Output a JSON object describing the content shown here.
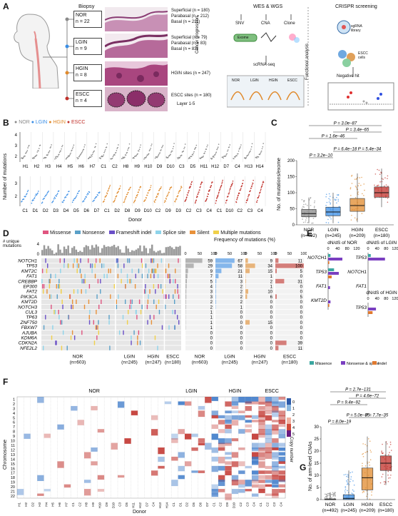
{
  "panels": {
    "A": {
      "label": "A",
      "biopsy_title": "Biopsy",
      "stages": [
        {
          "name": "NOR",
          "n": "n = 22",
          "color": "#8a8a8a"
        },
        {
          "name": "LGIN",
          "n": "n = 9",
          "color": "#3a8ee6"
        },
        {
          "name": "HGIN",
          "n": "n = 8",
          "color": "#e08a2c"
        },
        {
          "name": "ESCC",
          "n": "n = 4",
          "color": "#c0302a"
        }
      ],
      "site_labels": [
        [
          "Superficial (n = 180)",
          "Parabasal (n = 212)",
          "Basal (n = 211)"
        ],
        [
          "Superficial (n = 79)",
          "Parabasal (n = 83)",
          "Basal (n = 83)"
        ],
        [
          "HGIN sites (n = 247)"
        ],
        [
          "ESCC sites (n = 180)"
        ]
      ],
      "layer_label": "Layer 1-5",
      "wes_title": "WES & WGS",
      "wes_items": [
        "SNV",
        "CNA",
        "Clone"
      ],
      "exome_label": "Exome",
      "cancer_progression": "Cancer progression",
      "scrna_title": "scRNA-seq",
      "scrna_stages": [
        "NOR",
        "LGIN",
        "HGIN",
        "ESCC"
      ],
      "functional_analysis": "Functional analysis",
      "crispr_title": "CRISPR screening",
      "sgrna_label": "sgRNA\nlibrary",
      "escc_cells": "ESCC\ncells",
      "negative_hit": "Negative hit"
    },
    "B": {
      "label": "B",
      "legend": [
        {
          "name": "NOR",
          "color": "#8a8a8a"
        },
        {
          "name": "LGIN",
          "color": "#3a8ee6"
        },
        {
          "name": "HGIN",
          "color": "#e08a2c"
        },
        {
          "name": "ESCC",
          "color": "#c0302a"
        }
      ],
      "ylabel": "Number of mutations",
      "xlabel": "Donor",
      "top_yticks": [
        "4",
        "3",
        "2"
      ],
      "bottom_yticks": [
        "3",
        "2"
      ],
      "top_donors": [
        "H1",
        "H2",
        "H3",
        "H4",
        "H5",
        "H6",
        "H7",
        "C1",
        "C2",
        "H8",
        "H9",
        "H10",
        "D9",
        "D10",
        "C3",
        "D5",
        "H11",
        "H12",
        "D7",
        "C4",
        "H13",
        "H14"
      ],
      "bottom_donors": [
        "C1",
        "D1",
        "D2",
        "D3",
        "D4",
        "D5",
        "D6",
        "D7",
        "C1",
        "D2",
        "D8",
        "D9",
        "D10",
        "C2",
        "D9",
        "D3",
        "C2",
        "C3",
        "C4",
        "C1",
        "D10",
        "C2",
        "C3",
        "C4"
      ]
    },
    "C": {
      "label": "C",
      "ylabel": "No. of mutations/exome",
      "yticks": [
        "200",
        "150",
        "100",
        "50",
        "0"
      ],
      "pvalues": [
        "P = 3.0e−87",
        "P = 3.4e−65",
        "P = 1.6e−46",
        "P = 5.4e−34",
        "P = 6.4e−18",
        "P = 3.2e−10"
      ],
      "groups": [
        "NOR\n(n=492)",
        "LGIN\n(n=245)",
        "HGIN\n(n=209)",
        "ESCC\n(n=180)"
      ]
    },
    "D": {
      "label": "D",
      "legend": [
        {
          "name": "Missense",
          "color": "#e05580"
        },
        {
          "name": "Nonsense",
          "color": "#5aa0c8"
        },
        {
          "name": "Frameshift indel",
          "color": "#6a4fc7"
        },
        {
          "name": "Splice site",
          "color": "#8ed3ea"
        },
        {
          "name": "Silent",
          "color": "#e8913a"
        },
        {
          "name": "Multiple mutations",
          "color": "#f0d04a"
        }
      ],
      "unique_label": "# unique\nmutations",
      "freq_label": "Frequency of mutations (%)",
      "genes": [
        "NOTCH1",
        "TP53",
        "KMT2C",
        "FAT1",
        "CREBBP",
        "EP300",
        "FAT2",
        "PIK3CA",
        "KMT2D",
        "NOTCH3",
        "CUL3",
        "TP63",
        "ZNF750",
        "FBXW7",
        "AJUBA",
        "KDM6A",
        "CDKN2A",
        "NFE2L2"
      ],
      "freq_axis": [
        "0",
        "50",
        "100"
      ],
      "freq_columns": [
        {
          "name": "NOR",
          "values": [
            "59",
            "29",
            "9",
            "7",
            "5",
            "4",
            "3",
            "3",
            "2",
            "2",
            "1",
            "1",
            "1",
            "1",
            "0",
            "0",
            "0",
            "0"
          ]
        },
        {
          "name": "LGIN",
          "values": [
            "67",
            "58",
            "21",
            "11",
            "3",
            "2",
            "2",
            "2",
            "2",
            "1",
            "0",
            "0",
            "0",
            "0",
            "0",
            "0",
            "0",
            "0"
          ]
        },
        {
          "name": "HGIN",
          "values": [
            "9",
            "34",
            "15",
            "1",
            "2",
            "1",
            "10",
            "6",
            "0",
            "0",
            "0",
            "0",
            "15",
            "0",
            "0",
            "0",
            "0",
            "0"
          ]
        },
        {
          "name": "ESCC",
          "values": [
            "11",
            "100",
            "5",
            "0",
            "31",
            "0",
            "0",
            "5",
            "0",
            "0",
            "0",
            "0",
            "0",
            "0",
            "0",
            "0",
            "39",
            "11"
          ]
        }
      ],
      "bottom_groups": [
        "NOR\n(n=603)",
        "LGIN\n(n=245)",
        "HGIN\n(n=247)",
        "ESCC\n(n=180)",
        "NOR\n(n=603)",
        "LGIN\n(n=245)",
        "HGIN\n(n=247)",
        "ESCC\n(n=180)"
      ]
    },
    "E": {
      "label": "E",
      "title_nor": "dN/dS of NOR",
      "title_lgin": "dN/dS of LGIN",
      "title_hgin": "dN/dS of HGIN",
      "axis": [
        "0",
        "40",
        "80",
        "120"
      ],
      "genes_nor": [
        "NOTCH1",
        "TP53",
        "FAT1",
        "KMT2D"
      ],
      "genes_lgin": [
        "TP53",
        "NOTCH1",
        "FAT1"
      ],
      "genes_hgin": [
        "TP53"
      ],
      "legend": [
        {
          "name": "Missence",
          "color": "#3aa6a0"
        },
        {
          "name": "Nonsense & splice",
          "color": "#7a3fc0"
        },
        {
          "name": "Indel",
          "color": "#e07a30"
        }
      ]
    },
    "F": {
      "label": "F",
      "group_labels": [
        "NOR",
        "LGIN",
        "HGIN",
        "ESCC"
      ],
      "ylabel": "Chromosome",
      "chromosomes": [
        "1",
        "2",
        "3",
        "4",
        "5",
        "6",
        "7",
        "8",
        "9",
        "10",
        "11",
        "12",
        "13",
        "14",
        "15",
        "16",
        "17",
        "18",
        "19",
        "20",
        "21",
        "22"
      ],
      "xlabel": "Donor",
      "donors": [
        "H1",
        "H2",
        "D2",
        "H3",
        "H4",
        "H5",
        "H6",
        "H7",
        "C1",
        "C2",
        "H8",
        "H9",
        "H10",
        "D9",
        "D10",
        "C3",
        "D5",
        "H11",
        "H12",
        "D7",
        "C4",
        "H13",
        "H14",
        "C1",
        "D1",
        "D2",
        "D5",
        "D6",
        "D7",
        "C1",
        "C2",
        "D9",
        "D10",
        "C2",
        "C3",
        "C4",
        "C1",
        "C2",
        "C3",
        "C4"
      ],
      "copy_number_label": "Copy number",
      "copy_number_ticks": [
        "0",
        "1",
        "2",
        "3",
        "4",
        "5"
      ]
    },
    "G": {
      "label": "G",
      "ylabel": "No. of arm-level CNAs",
      "yticks": [
        "30",
        "25",
        "20",
        "15",
        "10",
        "5",
        "0"
      ],
      "pvalues": [
        "P = 2.7e−131",
        "P = 4.6e−72",
        "P = 9.4e−92",
        "P = 7.7e−35",
        "P = 5.0e−35",
        "P = 8.0e−19"
      ],
      "groups": [
        "NOR\n(n=492)",
        "LGIN\n(n=245)",
        "HGIN\n(n=209)",
        "ESCC\n(n=180)"
      ]
    }
  },
  "chart_data": [
    {
      "type": "box",
      "panel": "C",
      "ylabel": "No. of mutations/exome",
      "ylim": [
        0,
        200
      ],
      "categories": [
        "NOR (n=492)",
        "LGIN (n=245)",
        "HGIN (n=209)",
        "ESCC (n=180)"
      ],
      "boxes": [
        {
          "q1": 25,
          "median": 35,
          "q3": 48,
          "whisker_low": 5,
          "whisker_high": 85
        },
        {
          "q1": 28,
          "median": 40,
          "q3": 55,
          "whisker_low": 5,
          "whisker_high": 100
        },
        {
          "q1": 42,
          "median": 60,
          "q3": 82,
          "whisker_low": 8,
          "whisker_high": 160
        },
        {
          "q1": 86,
          "median": 100,
          "q3": 118,
          "whisker_low": 55,
          "whisker_high": 175
        }
      ],
      "colors": [
        "#8a8a8a",
        "#3a8ee6",
        "#e08a2c",
        "#c0302a"
      ]
    },
    {
      "type": "box",
      "panel": "G",
      "ylabel": "No. of arm-level CNAs",
      "ylim": [
        0,
        30
      ],
      "categories": [
        "NOR (n=492)",
        "LGIN (n=245)",
        "HGIN (n=209)",
        "ESCC (n=180)"
      ],
      "boxes": [
        {
          "q1": 0,
          "median": 0,
          "q3": 0.3,
          "whisker_low": 0,
          "whisker_high": 3
        },
        {
          "q1": 0,
          "median": 0.5,
          "q3": 2,
          "whisker_low": 0,
          "whisker_high": 12
        },
        {
          "q1": 4,
          "median": 9,
          "q3": 13,
          "whisker_low": 0,
          "whisker_high": 26
        },
        {
          "q1": 12,
          "median": 15,
          "q3": 18,
          "whisker_low": 6,
          "whisker_high": 24
        }
      ],
      "colors": [
        "#8a8a8a",
        "#3a8ee6",
        "#e08a2c",
        "#c0302a"
      ]
    },
    {
      "type": "bar",
      "panel": "E",
      "title": "dN/dS of NOR",
      "categories": [
        "NOTCH1",
        "TP53",
        "FAT1",
        "KMT2D"
      ],
      "series": [
        {
          "name": "Missence",
          "values": [
            10,
            25,
            0,
            0
          ]
        },
        {
          "name": "Nonsense & splice",
          "values": [
            60,
            45,
            8,
            10
          ]
        },
        {
          "name": "Indel",
          "values": [
            5,
            15,
            0,
            5
          ]
        }
      ]
    }
  ]
}
